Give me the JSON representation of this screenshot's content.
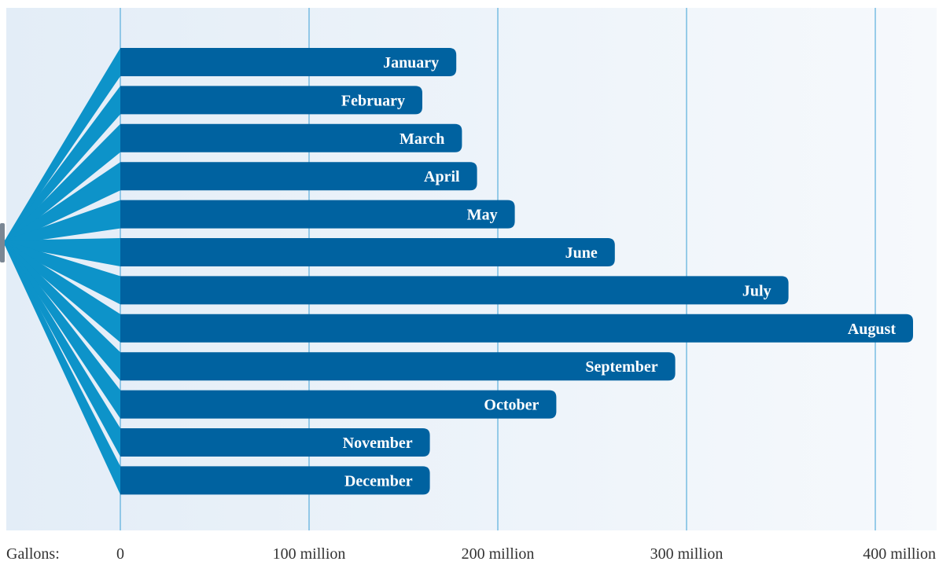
{
  "chart_data": {
    "type": "bar",
    "orientation": "horizontal",
    "x_axis_prefix": "Gallons:",
    "categories": [
      "January",
      "February",
      "March",
      "April",
      "May",
      "June",
      "July",
      "August",
      "September",
      "October",
      "November",
      "December"
    ],
    "values": [
      178,
      160,
      181,
      189,
      209,
      262,
      354,
      420,
      294,
      231,
      164,
      164
    ],
    "unit": "million gallons",
    "xlim": [
      0,
      420
    ],
    "x_ticks": [
      0,
      100,
      200,
      300,
      400
    ],
    "x_tick_labels": [
      "0",
      "100 million",
      "200 million",
      "300 million",
      "400 million"
    ],
    "grid": "vertical",
    "colors": {
      "bar": "#0062a0",
      "fan": "#0d93c9",
      "background_gradient_start": "#e3edf7",
      "background_gradient_end": "#f6f9fc",
      "gridline": "#3aa0d6",
      "label": "#ffffff",
      "axis_text": "#333333",
      "hub": "#7b8794"
    }
  }
}
